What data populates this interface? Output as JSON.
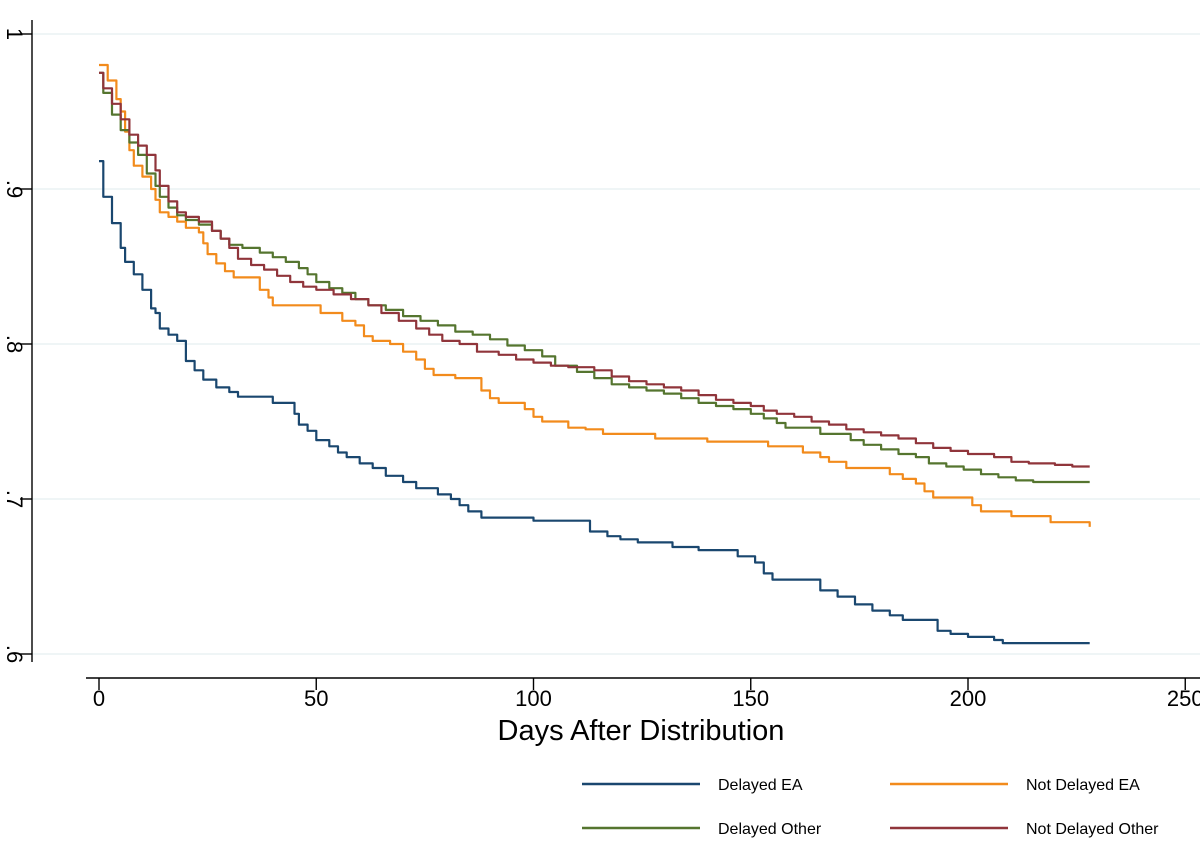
{
  "chart_data": {
    "type": "line",
    "title": "",
    "xlabel": "Days After Distribution",
    "ylabel": "",
    "xlim": [
      0,
      250
    ],
    "ylim": [
      0.6,
      1.0
    ],
    "x_ticks": [
      0,
      50,
      100,
      150,
      200,
      250
    ],
    "x_tick_labels": [
      "0",
      "50",
      "100",
      "150",
      "200",
      "250"
    ],
    "y_ticks": [
      0.6,
      0.7,
      0.8,
      0.9,
      1.0
    ],
    "y_tick_labels": [
      ".6",
      ".7",
      ".8",
      ".9",
      "1"
    ],
    "grid": "horizontal",
    "legend_position": "bottom-right",
    "legend_columns": 2,
    "step": true,
    "series": [
      {
        "name": "Delayed EA",
        "color": "#1a476f",
        "points": [
          [
            0,
            0.918
          ],
          [
            1,
            0.895
          ],
          [
            3,
            0.878
          ],
          [
            5,
            0.862
          ],
          [
            6,
            0.853
          ],
          [
            8,
            0.845
          ],
          [
            10,
            0.835
          ],
          [
            12,
            0.823
          ],
          [
            13,
            0.82
          ],
          [
            14,
            0.81
          ],
          [
            16,
            0.806
          ],
          [
            18,
            0.802
          ],
          [
            20,
            0.789
          ],
          [
            22,
            0.783
          ],
          [
            24,
            0.777
          ],
          [
            27,
            0.772
          ],
          [
            30,
            0.769
          ],
          [
            32,
            0.766
          ],
          [
            38,
            0.766
          ],
          [
            40,
            0.762
          ],
          [
            45,
            0.755
          ],
          [
            46,
            0.748
          ],
          [
            48,
            0.744
          ],
          [
            50,
            0.738
          ],
          [
            53,
            0.734
          ],
          [
            55,
            0.73
          ],
          [
            57,
            0.727
          ],
          [
            60,
            0.723
          ],
          [
            63,
            0.72
          ],
          [
            66,
            0.715
          ],
          [
            70,
            0.711
          ],
          [
            73,
            0.707
          ],
          [
            78,
            0.703
          ],
          [
            81,
            0.7
          ],
          [
            83,
            0.696
          ],
          [
            85,
            0.692
          ],
          [
            88,
            0.688
          ],
          [
            98,
            0.688
          ],
          [
            100,
            0.686
          ],
          [
            110,
            0.686
          ],
          [
            113,
            0.679
          ],
          [
            117,
            0.676
          ],
          [
            120,
            0.674
          ],
          [
            124,
            0.672
          ],
          [
            132,
            0.669
          ],
          [
            138,
            0.667
          ],
          [
            147,
            0.663
          ],
          [
            151,
            0.659
          ],
          [
            153,
            0.652
          ],
          [
            155,
            0.648
          ],
          [
            165,
            0.648
          ],
          [
            166,
            0.641
          ],
          [
            170,
            0.637
          ],
          [
            174,
            0.632
          ],
          [
            178,
            0.628
          ],
          [
            182,
            0.625
          ],
          [
            185,
            0.622
          ],
          [
            192,
            0.622
          ],
          [
            193,
            0.615
          ],
          [
            196,
            0.613
          ],
          [
            200,
            0.611
          ],
          [
            206,
            0.609
          ],
          [
            208,
            0.607
          ],
          [
            228,
            0.607
          ]
        ]
      },
      {
        "name": "Not Delayed EA",
        "color": "#f28b1c",
        "points": [
          [
            0,
            0.98
          ],
          [
            2,
            0.97
          ],
          [
            4,
            0.958
          ],
          [
            5,
            0.95
          ],
          [
            6,
            0.937
          ],
          [
            7,
            0.925
          ],
          [
            8,
            0.915
          ],
          [
            10,
            0.908
          ],
          [
            12,
            0.9
          ],
          [
            13,
            0.893
          ],
          [
            14,
            0.885
          ],
          [
            16,
            0.882
          ],
          [
            18,
            0.879
          ],
          [
            20,
            0.875
          ],
          [
            23,
            0.872
          ],
          [
            24,
            0.865
          ],
          [
            25,
            0.858
          ],
          [
            27,
            0.852
          ],
          [
            29,
            0.847
          ],
          [
            31,
            0.843
          ],
          [
            36,
            0.843
          ],
          [
            37,
            0.835
          ],
          [
            39,
            0.83
          ],
          [
            40,
            0.825
          ],
          [
            50,
            0.825
          ],
          [
            51,
            0.82
          ],
          [
            55,
            0.82
          ],
          [
            56,
            0.815
          ],
          [
            59,
            0.812
          ],
          [
            61,
            0.805
          ],
          [
            63,
            0.802
          ],
          [
            67,
            0.8
          ],
          [
            70,
            0.795
          ],
          [
            73,
            0.79
          ],
          [
            75,
            0.784
          ],
          [
            77,
            0.78
          ],
          [
            81,
            0.78
          ],
          [
            82,
            0.778
          ],
          [
            86,
            0.778
          ],
          [
            88,
            0.77
          ],
          [
            90,
            0.765
          ],
          [
            92,
            0.762
          ],
          [
            96,
            0.762
          ],
          [
            98,
            0.758
          ],
          [
            100,
            0.753
          ],
          [
            102,
            0.75
          ],
          [
            107,
            0.75
          ],
          [
            108,
            0.746
          ],
          [
            112,
            0.745
          ],
          [
            116,
            0.742
          ],
          [
            125,
            0.742
          ],
          [
            128,
            0.739
          ],
          [
            136,
            0.739
          ],
          [
            140,
            0.737
          ],
          [
            153,
            0.737
          ],
          [
            154,
            0.734
          ],
          [
            160,
            0.734
          ],
          [
            162,
            0.73
          ],
          [
            166,
            0.727
          ],
          [
            168,
            0.724
          ],
          [
            172,
            0.72
          ],
          [
            180,
            0.72
          ],
          [
            182,
            0.716
          ],
          [
            185,
            0.713
          ],
          [
            188,
            0.71
          ],
          [
            190,
            0.705
          ],
          [
            192,
            0.701
          ],
          [
            199,
            0.701
          ],
          [
            201,
            0.696
          ],
          [
            203,
            0.692
          ],
          [
            208,
            0.692
          ],
          [
            210,
            0.689
          ],
          [
            217,
            0.689
          ],
          [
            219,
            0.685
          ],
          [
            226,
            0.685
          ],
          [
            228,
            0.682
          ]
        ]
      },
      {
        "name": "Delayed Other",
        "color": "#55752f",
        "points": [
          [
            0,
            0.975
          ],
          [
            1,
            0.962
          ],
          [
            3,
            0.948
          ],
          [
            5,
            0.938
          ],
          [
            7,
            0.93
          ],
          [
            9,
            0.922
          ],
          [
            11,
            0.91
          ],
          [
            13,
            0.902
          ],
          [
            14,
            0.895
          ],
          [
            16,
            0.888
          ],
          [
            18,
            0.883
          ],
          [
            20,
            0.88
          ],
          [
            23,
            0.877
          ],
          [
            26,
            0.873
          ],
          [
            28,
            0.868
          ],
          [
            30,
            0.864
          ],
          [
            33,
            0.862
          ],
          [
            37,
            0.859
          ],
          [
            40,
            0.856
          ],
          [
            43,
            0.853
          ],
          [
            46,
            0.849
          ],
          [
            48,
            0.845
          ],
          [
            50,
            0.84
          ],
          [
            53,
            0.836
          ],
          [
            56,
            0.833
          ],
          [
            59,
            0.829
          ],
          [
            62,
            0.825
          ],
          [
            66,
            0.822
          ],
          [
            70,
            0.818
          ],
          [
            74,
            0.815
          ],
          [
            78,
            0.812
          ],
          [
            82,
            0.808
          ],
          [
            86,
            0.806
          ],
          [
            90,
            0.803
          ],
          [
            94,
            0.799
          ],
          [
            98,
            0.796
          ],
          [
            102,
            0.792
          ],
          [
            105,
            0.786
          ],
          [
            110,
            0.782
          ],
          [
            114,
            0.778
          ],
          [
            118,
            0.774
          ],
          [
            122,
            0.772
          ],
          [
            126,
            0.77
          ],
          [
            130,
            0.768
          ],
          [
            134,
            0.765
          ],
          [
            138,
            0.762
          ],
          [
            142,
            0.76
          ],
          [
            146,
            0.758
          ],
          [
            150,
            0.755
          ],
          [
            153,
            0.752
          ],
          [
            156,
            0.749
          ],
          [
            158,
            0.746
          ],
          [
            164,
            0.746
          ],
          [
            166,
            0.742
          ],
          [
            170,
            0.742
          ],
          [
            173,
            0.738
          ],
          [
            176,
            0.735
          ],
          [
            180,
            0.732
          ],
          [
            184,
            0.729
          ],
          [
            188,
            0.727
          ],
          [
            191,
            0.723
          ],
          [
            195,
            0.721
          ],
          [
            199,
            0.719
          ],
          [
            203,
            0.716
          ],
          [
            207,
            0.714
          ],
          [
            211,
            0.712
          ],
          [
            215,
            0.711
          ],
          [
            228,
            0.711
          ]
        ]
      },
      {
        "name": "Not Delayed Other",
        "color": "#90353b",
        "points": [
          [
            0,
            0.975
          ],
          [
            1,
            0.965
          ],
          [
            3,
            0.955
          ],
          [
            5,
            0.945
          ],
          [
            7,
            0.935
          ],
          [
            9,
            0.928
          ],
          [
            11,
            0.922
          ],
          [
            13,
            0.912
          ],
          [
            14,
            0.902
          ],
          [
            16,
            0.892
          ],
          [
            18,
            0.885
          ],
          [
            20,
            0.882
          ],
          [
            23,
            0.879
          ],
          [
            26,
            0.873
          ],
          [
            28,
            0.868
          ],
          [
            30,
            0.862
          ],
          [
            32,
            0.855
          ],
          [
            35,
            0.851
          ],
          [
            38,
            0.848
          ],
          [
            41,
            0.844
          ],
          [
            44,
            0.84
          ],
          [
            47,
            0.837
          ],
          [
            50,
            0.835
          ],
          [
            54,
            0.832
          ],
          [
            58,
            0.829
          ],
          [
            62,
            0.825
          ],
          [
            65,
            0.82
          ],
          [
            69,
            0.815
          ],
          [
            73,
            0.81
          ],
          [
            76,
            0.806
          ],
          [
            79,
            0.802
          ],
          [
            83,
            0.8
          ],
          [
            87,
            0.795
          ],
          [
            92,
            0.793
          ],
          [
            96,
            0.79
          ],
          [
            100,
            0.788
          ],
          [
            104,
            0.786
          ],
          [
            108,
            0.785
          ],
          [
            114,
            0.783
          ],
          [
            118,
            0.779
          ],
          [
            122,
            0.776
          ],
          [
            126,
            0.774
          ],
          [
            130,
            0.772
          ],
          [
            134,
            0.77
          ],
          [
            138,
            0.767
          ],
          [
            142,
            0.764
          ],
          [
            146,
            0.762
          ],
          [
            150,
            0.76
          ],
          [
            153,
            0.757
          ],
          [
            156,
            0.755
          ],
          [
            160,
            0.753
          ],
          [
            164,
            0.75
          ],
          [
            168,
            0.748
          ],
          [
            172,
            0.745
          ],
          [
            176,
            0.743
          ],
          [
            180,
            0.741
          ],
          [
            184,
            0.739
          ],
          [
            188,
            0.736
          ],
          [
            192,
            0.733
          ],
          [
            196,
            0.731
          ],
          [
            200,
            0.729
          ],
          [
            206,
            0.727
          ],
          [
            210,
            0.724
          ],
          [
            214,
            0.723
          ],
          [
            220,
            0.722
          ],
          [
            224,
            0.721
          ],
          [
            228,
            0.721
          ]
        ]
      }
    ]
  }
}
